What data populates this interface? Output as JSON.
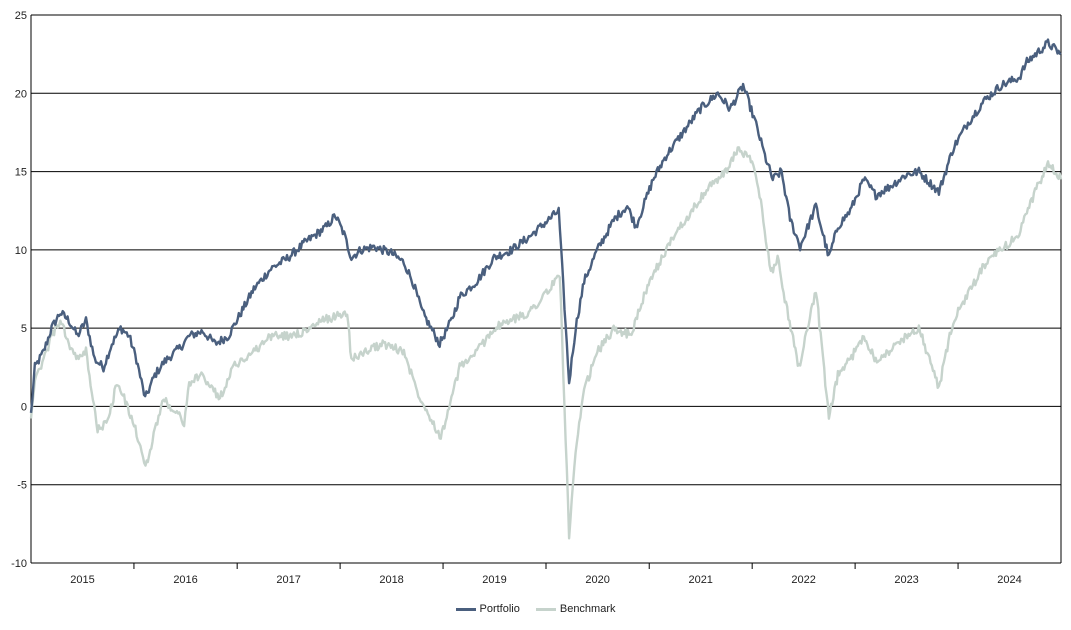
{
  "chart_data": {
    "type": "line",
    "title": "",
    "xlabel": "",
    "ylabel": "",
    "ylim": [
      -10,
      25
    ],
    "xlim": [
      "2015-01-01",
      "2024-12-31"
    ],
    "yticks": [
      "-10",
      "-5",
      "0",
      "5",
      "10",
      "15",
      "20",
      "25"
    ],
    "xticks": [
      {
        "label": "2015",
        "start": "2015-01-01",
        "end": "2016-01-01"
      },
      {
        "label": "2016",
        "start": "2016-01-01",
        "end": "2017-01-01"
      },
      {
        "label": "2017",
        "start": "2017-01-01",
        "end": "2018-01-01"
      },
      {
        "label": "2018",
        "start": "2018-01-01",
        "end": "2019-01-01"
      },
      {
        "label": "2019",
        "start": "2019-01-01",
        "end": "2020-01-01"
      },
      {
        "label": "2020",
        "start": "2020-01-01",
        "end": "2021-01-01"
      },
      {
        "label": "2021",
        "start": "2021-01-01",
        "end": "2022-01-01"
      },
      {
        "label": "2022",
        "start": "2022-01-01",
        "end": "2023-01-01"
      },
      {
        "label": "2023",
        "start": "2023-01-01",
        "end": "2024-01-01"
      },
      {
        "label": "2024",
        "start": "2024-01-01",
        "end": "2024-12-31"
      }
    ],
    "grid": "horizontal",
    "legend_position": "bottom-center",
    "series": [
      {
        "name": "Portfolio",
        "color": "#4a5f7e",
        "points": [
          [
            "2015-01-01",
            -0.5
          ],
          [
            "2015-01-15",
            2.5
          ],
          [
            "2015-02-15",
            3.5
          ],
          [
            "2015-03-15",
            5.0
          ],
          [
            "2015-04-15",
            6.0
          ],
          [
            "2015-05-15",
            5.5
          ],
          [
            "2015-06-15",
            4.5
          ],
          [
            "2015-07-15",
            5.5
          ],
          [
            "2015-08-15",
            3.0
          ],
          [
            "2015-09-15",
            2.5
          ],
          [
            "2015-10-15",
            4.0
          ],
          [
            "2015-11-15",
            5.0
          ],
          [
            "2015-12-15",
            4.5
          ],
          [
            "2016-01-10",
            3.0
          ],
          [
            "2016-02-10",
            0.5
          ],
          [
            "2016-03-15",
            2.0
          ],
          [
            "2016-04-15",
            2.8
          ],
          [
            "2016-05-15",
            3.3
          ],
          [
            "2016-06-15",
            3.8
          ],
          [
            "2016-07-15",
            4.5
          ],
          [
            "2016-09-01",
            4.8
          ],
          [
            "2016-10-15",
            4.0
          ],
          [
            "2016-12-01",
            4.5
          ],
          [
            "2017-01-15",
            6.0
          ],
          [
            "2017-03-01",
            7.5
          ],
          [
            "2017-05-01",
            8.8
          ],
          [
            "2017-07-01",
            9.5
          ],
          [
            "2017-09-01",
            10.5
          ],
          [
            "2017-11-15",
            11.5
          ],
          [
            "2017-12-15",
            12.2
          ],
          [
            "2018-01-15",
            11.0
          ],
          [
            "2018-02-10",
            9.5
          ],
          [
            "2018-03-15",
            10.0
          ],
          [
            "2018-05-01",
            10.2
          ],
          [
            "2018-07-01",
            9.8
          ],
          [
            "2018-08-15",
            9.2
          ],
          [
            "2018-09-15",
            8.0
          ],
          [
            "2018-10-20",
            6.0
          ],
          [
            "2018-12-20",
            4.0
          ],
          [
            "2019-01-31",
            5.5
          ],
          [
            "2019-03-01",
            7.0
          ],
          [
            "2019-05-01",
            8.0
          ],
          [
            "2019-07-01",
            9.5
          ],
          [
            "2019-09-01",
            10.0
          ],
          [
            "2019-11-01",
            10.8
          ],
          [
            "2020-01-15",
            12.0
          ],
          [
            "2020-02-15",
            12.5
          ],
          [
            "2020-03-23",
            1.5
          ],
          [
            "2020-04-15",
            5.0
          ],
          [
            "2020-05-15",
            8.0
          ],
          [
            "2020-07-01",
            10.0
          ],
          [
            "2020-09-01",
            12.0
          ],
          [
            "2020-10-15",
            12.8
          ],
          [
            "2020-11-15",
            11.5
          ],
          [
            "2021-01-15",
            14.5
          ],
          [
            "2021-03-01",
            16.0
          ],
          [
            "2021-05-01",
            17.5
          ],
          [
            "2021-07-01",
            19.0
          ],
          [
            "2021-09-01",
            20.0
          ],
          [
            "2021-10-15",
            19.0
          ],
          [
            "2021-11-30",
            20.5
          ],
          [
            "2022-01-15",
            18.0
          ],
          [
            "2022-02-15",
            16.0
          ],
          [
            "2022-03-15",
            14.5
          ],
          [
            "2022-04-15",
            15.0
          ],
          [
            "2022-05-15",
            12.0
          ],
          [
            "2022-06-20",
            10.2
          ],
          [
            "2022-08-15",
            12.8
          ],
          [
            "2022-09-30",
            9.5
          ],
          [
            "2022-11-01",
            11.5
          ],
          [
            "2022-12-15",
            12.5
          ],
          [
            "2023-02-01",
            14.5
          ],
          [
            "2023-03-15",
            13.5
          ],
          [
            "2023-05-01",
            14.0
          ],
          [
            "2023-07-01",
            14.8
          ],
          [
            "2023-08-15",
            15.0
          ],
          [
            "2023-10-25",
            13.7
          ],
          [
            "2023-12-15",
            16.5
          ],
          [
            "2024-02-01",
            18.0
          ],
          [
            "2024-04-01",
            19.5
          ],
          [
            "2024-06-01",
            20.5
          ],
          [
            "2024-08-05",
            21.0
          ],
          [
            "2024-09-01",
            22.0
          ],
          [
            "2024-11-15",
            23.2
          ],
          [
            "2024-12-31",
            22.5
          ]
        ]
      },
      {
        "name": "Benchmark",
        "color": "#c6d3cc",
        "points": [
          [
            "2015-01-01",
            -0.5
          ],
          [
            "2015-01-15",
            1.5
          ],
          [
            "2015-02-15",
            3.0
          ],
          [
            "2015-03-15",
            4.5
          ],
          [
            "2015-04-15",
            5.5
          ],
          [
            "2015-05-15",
            4.0
          ],
          [
            "2015-06-15",
            3.0
          ],
          [
            "2015-07-15",
            3.5
          ],
          [
            "2015-08-25",
            -1.5
          ],
          [
            "2015-09-30",
            -1.0
          ],
          [
            "2015-11-01",
            1.5
          ],
          [
            "2015-12-10",
            0.0
          ],
          [
            "2016-01-15",
            -2.0
          ],
          [
            "2016-02-11",
            -4.0
          ],
          [
            "2016-03-15",
            -1.5
          ],
          [
            "2016-04-15",
            0.5
          ],
          [
            "2016-06-27",
            -1.0
          ],
          [
            "2016-07-15",
            1.5
          ],
          [
            "2016-09-01",
            2.0
          ],
          [
            "2016-11-01",
            0.5
          ],
          [
            "2016-12-15",
            2.5
          ],
          [
            "2017-03-01",
            3.5
          ],
          [
            "2017-05-01",
            4.5
          ],
          [
            "2017-07-01",
            4.5
          ],
          [
            "2017-09-01",
            4.8
          ],
          [
            "2017-11-01",
            5.5
          ],
          [
            "2018-01-26",
            6.0
          ],
          [
            "2018-02-10",
            3.0
          ],
          [
            "2018-04-01",
            3.5
          ],
          [
            "2018-06-01",
            4.0
          ],
          [
            "2018-08-15",
            3.5
          ],
          [
            "2018-10-01",
            1.0
          ],
          [
            "2018-12-24",
            -2.0
          ],
          [
            "2019-01-31",
            0.5
          ],
          [
            "2019-03-01",
            2.5
          ],
          [
            "2019-05-01",
            3.5
          ],
          [
            "2019-07-01",
            5.0
          ],
          [
            "2019-09-01",
            5.5
          ],
          [
            "2019-11-01",
            6.0
          ],
          [
            "2020-01-15",
            7.5
          ],
          [
            "2020-02-19",
            8.5
          ],
          [
            "2020-03-23",
            -8.3
          ],
          [
            "2020-04-15",
            -3.0
          ],
          [
            "2020-05-15",
            1.0
          ],
          [
            "2020-07-01",
            3.5
          ],
          [
            "2020-09-01",
            5.0
          ],
          [
            "2020-10-30",
            4.5
          ],
          [
            "2020-12-01",
            6.5
          ],
          [
            "2021-02-01",
            9.0
          ],
          [
            "2021-04-01",
            11.0
          ],
          [
            "2021-06-01",
            12.5
          ],
          [
            "2021-08-01",
            14.0
          ],
          [
            "2021-09-30",
            15.0
          ],
          [
            "2021-11-15",
            16.5
          ],
          [
            "2022-01-05",
            15.5
          ],
          [
            "2022-02-01",
            13.0
          ],
          [
            "2022-03-08",
            8.5
          ],
          [
            "2022-04-01",
            9.5
          ],
          [
            "2022-05-01",
            6.5
          ],
          [
            "2022-06-16",
            2.5
          ],
          [
            "2022-08-15",
            7.5
          ],
          [
            "2022-09-30",
            -0.8
          ],
          [
            "2022-11-01",
            2.0
          ],
          [
            "2022-12-15",
            3.0
          ],
          [
            "2023-02-01",
            4.5
          ],
          [
            "2023-03-15",
            3.0
          ],
          [
            "2023-05-01",
            3.5
          ],
          [
            "2023-07-01",
            4.5
          ],
          [
            "2023-08-15",
            5.0
          ],
          [
            "2023-10-25",
            1.2
          ],
          [
            "2023-12-15",
            5.5
          ],
          [
            "2024-02-01",
            7.0
          ],
          [
            "2024-04-01",
            9.0
          ],
          [
            "2024-06-01",
            10.0
          ],
          [
            "2024-08-05",
            11.0
          ],
          [
            "2024-09-01",
            12.5
          ],
          [
            "2024-11-15",
            15.5
          ],
          [
            "2024-12-31",
            14.5
          ]
        ]
      }
    ]
  }
}
